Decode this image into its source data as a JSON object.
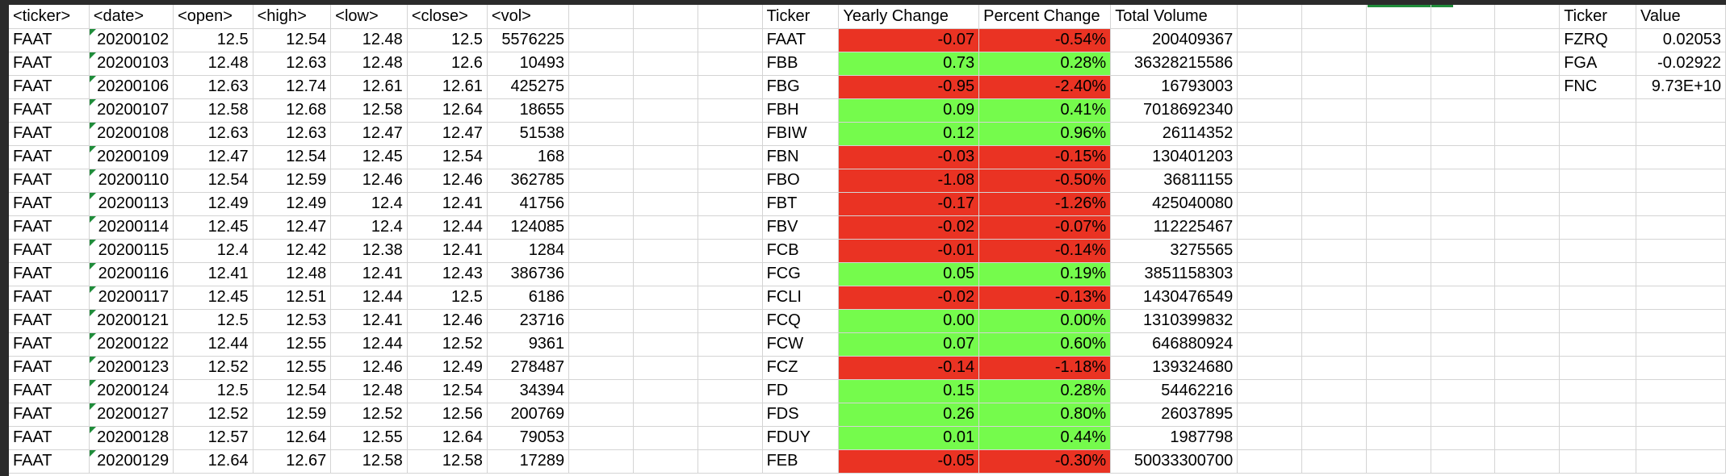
{
  "headers": {
    "ticker": "<ticker>",
    "date": "<date>",
    "open": "<open>",
    "high": "<high>",
    "low": "<low>",
    "close": "<close>",
    "vol": "<vol>",
    "summary_ticker": "Ticker",
    "yearly_change": "Yearly Change",
    "percent_change": "Percent Change",
    "total_volume": "Total Volume",
    "greatest_ticker": "Ticker",
    "greatest_value": "Value"
  },
  "raw_rows": [
    {
      "ticker": "FAAT",
      "date": "20200102",
      "open": "12.5",
      "high": "12.54",
      "low": "12.48",
      "close": "12.5",
      "vol": "5576225"
    },
    {
      "ticker": "FAAT",
      "date": "20200103",
      "open": "12.48",
      "high": "12.63",
      "low": "12.48",
      "close": "12.6",
      "vol": "10493"
    },
    {
      "ticker": "FAAT",
      "date": "20200106",
      "open": "12.63",
      "high": "12.74",
      "low": "12.61",
      "close": "12.61",
      "vol": "425275"
    },
    {
      "ticker": "FAAT",
      "date": "20200107",
      "open": "12.58",
      "high": "12.68",
      "low": "12.58",
      "close": "12.64",
      "vol": "18655"
    },
    {
      "ticker": "FAAT",
      "date": "20200108",
      "open": "12.63",
      "high": "12.63",
      "low": "12.47",
      "close": "12.47",
      "vol": "51538"
    },
    {
      "ticker": "FAAT",
      "date": "20200109",
      "open": "12.47",
      "high": "12.54",
      "low": "12.45",
      "close": "12.54",
      "vol": "168"
    },
    {
      "ticker": "FAAT",
      "date": "20200110",
      "open": "12.54",
      "high": "12.59",
      "low": "12.46",
      "close": "12.46",
      "vol": "362785"
    },
    {
      "ticker": "FAAT",
      "date": "20200113",
      "open": "12.49",
      "high": "12.49",
      "low": "12.4",
      "close": "12.41",
      "vol": "41756"
    },
    {
      "ticker": "FAAT",
      "date": "20200114",
      "open": "12.45",
      "high": "12.47",
      "low": "12.4",
      "close": "12.44",
      "vol": "124085"
    },
    {
      "ticker": "FAAT",
      "date": "20200115",
      "open": "12.4",
      "high": "12.42",
      "low": "12.38",
      "close": "12.41",
      "vol": "1284"
    },
    {
      "ticker": "FAAT",
      "date": "20200116",
      "open": "12.41",
      "high": "12.48",
      "low": "12.41",
      "close": "12.43",
      "vol": "386736"
    },
    {
      "ticker": "FAAT",
      "date": "20200117",
      "open": "12.45",
      "high": "12.51",
      "low": "12.44",
      "close": "12.5",
      "vol": "6186"
    },
    {
      "ticker": "FAAT",
      "date": "20200121",
      "open": "12.5",
      "high": "12.53",
      "low": "12.41",
      "close": "12.46",
      "vol": "23716"
    },
    {
      "ticker": "FAAT",
      "date": "20200122",
      "open": "12.44",
      "high": "12.55",
      "low": "12.44",
      "close": "12.52",
      "vol": "9361"
    },
    {
      "ticker": "FAAT",
      "date": "20200123",
      "open": "12.52",
      "high": "12.55",
      "low": "12.46",
      "close": "12.49",
      "vol": "278487"
    },
    {
      "ticker": "FAAT",
      "date": "20200124",
      "open": "12.5",
      "high": "12.54",
      "low": "12.48",
      "close": "12.54",
      "vol": "34394"
    },
    {
      "ticker": "FAAT",
      "date": "20200127",
      "open": "12.52",
      "high": "12.59",
      "low": "12.52",
      "close": "12.56",
      "vol": "200769"
    },
    {
      "ticker": "FAAT",
      "date": "20200128",
      "open": "12.57",
      "high": "12.64",
      "low": "12.55",
      "close": "12.64",
      "vol": "79053"
    },
    {
      "ticker": "FAAT",
      "date": "20200129",
      "open": "12.64",
      "high": "12.67",
      "low": "12.58",
      "close": "12.58",
      "vol": "17289"
    }
  ],
  "summary_rows": [
    {
      "ticker": "FAAT",
      "yearly_change": "-0.07",
      "percent_change": "-0.54%",
      "total_volume": "200409367",
      "status": "negative"
    },
    {
      "ticker": "FBB",
      "yearly_change": "0.73",
      "percent_change": "0.28%",
      "total_volume": "36328215586",
      "status": "positive"
    },
    {
      "ticker": "FBG",
      "yearly_change": "-0.95",
      "percent_change": "-2.40%",
      "total_volume": "16793003",
      "status": "negative"
    },
    {
      "ticker": "FBH",
      "yearly_change": "0.09",
      "percent_change": "0.41%",
      "total_volume": "7018692340",
      "status": "positive"
    },
    {
      "ticker": "FBIW",
      "yearly_change": "0.12",
      "percent_change": "0.96%",
      "total_volume": "26114352",
      "status": "positive"
    },
    {
      "ticker": "FBN",
      "yearly_change": "-0.03",
      "percent_change": "-0.15%",
      "total_volume": "130401203",
      "status": "negative"
    },
    {
      "ticker": "FBO",
      "yearly_change": "-1.08",
      "percent_change": "-0.50%",
      "total_volume": "36811155",
      "status": "negative"
    },
    {
      "ticker": "FBT",
      "yearly_change": "-0.17",
      "percent_change": "-1.26%",
      "total_volume": "425040080",
      "status": "negative"
    },
    {
      "ticker": "FBV",
      "yearly_change": "-0.02",
      "percent_change": "-0.07%",
      "total_volume": "112225467",
      "status": "negative"
    },
    {
      "ticker": "FCB",
      "yearly_change": "-0.01",
      "percent_change": "-0.14%",
      "total_volume": "3275565",
      "status": "negative"
    },
    {
      "ticker": "FCG",
      "yearly_change": "0.05",
      "percent_change": "0.19%",
      "total_volume": "3851158303",
      "status": "positive"
    },
    {
      "ticker": "FCLI",
      "yearly_change": "-0.02",
      "percent_change": "-0.13%",
      "total_volume": "1430476549",
      "status": "negative"
    },
    {
      "ticker": "FCQ",
      "yearly_change": "0.00",
      "percent_change": "0.00%",
      "total_volume": "1310399832",
      "status": "positive"
    },
    {
      "ticker": "FCW",
      "yearly_change": "0.07",
      "percent_change": "0.60%",
      "total_volume": "646880924",
      "status": "positive"
    },
    {
      "ticker": "FCZ",
      "yearly_change": "-0.14",
      "percent_change": "-1.18%",
      "total_volume": "139324680",
      "status": "negative"
    },
    {
      "ticker": "FD",
      "yearly_change": "0.15",
      "percent_change": "0.28%",
      "total_volume": "54462216",
      "status": "positive"
    },
    {
      "ticker": "FDS",
      "yearly_change": "0.26",
      "percent_change": "0.80%",
      "total_volume": "26037895",
      "status": "positive"
    },
    {
      "ticker": "FDUY",
      "yearly_change": "0.01",
      "percent_change": "0.44%",
      "total_volume": "1987798",
      "status": "positive"
    },
    {
      "ticker": "FEB",
      "yearly_change": "-0.05",
      "percent_change": "-0.30%",
      "total_volume": "50033300700",
      "status": "negative"
    }
  ],
  "greatest_rows": [
    {
      "ticker": "FZRQ",
      "value": "0.02053"
    },
    {
      "ticker": "FGA",
      "value": "-0.02922"
    },
    {
      "ticker": "FNC",
      "value": "9.73E+10"
    }
  ],
  "colors": {
    "positive": "#75fb4c",
    "negative": "#ea3323",
    "gridline": "#d4d4d4",
    "selection": "#1f8c3a"
  }
}
